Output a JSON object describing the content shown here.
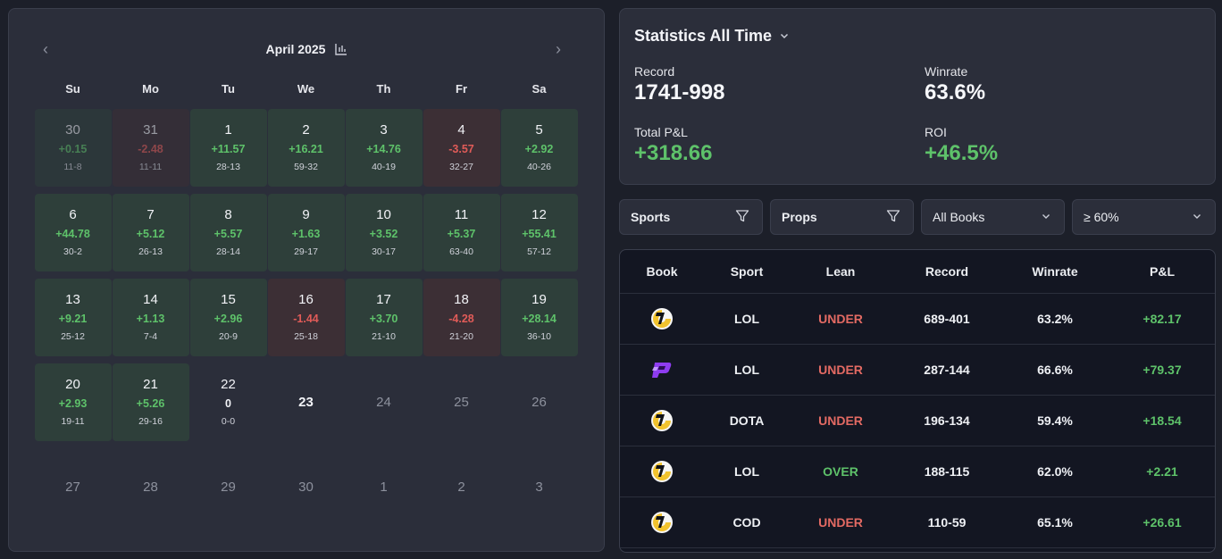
{
  "calendar": {
    "month_label": "April 2025",
    "prev_glyph": "‹",
    "next_glyph": "›",
    "weekdays": [
      "Su",
      "Mo",
      "Tu",
      "We",
      "Th",
      "Fr",
      "Sa"
    ],
    "days": [
      {
        "day": "30",
        "pnl": "+0.15",
        "record": "11-8",
        "status": "win",
        "other_month": true
      },
      {
        "day": "31",
        "pnl": "-2.48",
        "record": "11-11",
        "status": "loss",
        "other_month": true
      },
      {
        "day": "1",
        "pnl": "+11.57",
        "record": "28-13",
        "status": "win"
      },
      {
        "day": "2",
        "pnl": "+16.21",
        "record": "59-32",
        "status": "win"
      },
      {
        "day": "3",
        "pnl": "+14.76",
        "record": "40-19",
        "status": "win"
      },
      {
        "day": "4",
        "pnl": "-3.57",
        "record": "32-27",
        "status": "loss"
      },
      {
        "day": "5",
        "pnl": "+2.92",
        "record": "40-26",
        "status": "win"
      },
      {
        "day": "6",
        "pnl": "+44.78",
        "record": "30-2",
        "status": "win"
      },
      {
        "day": "7",
        "pnl": "+5.12",
        "record": "26-13",
        "status": "win"
      },
      {
        "day": "8",
        "pnl": "+5.57",
        "record": "28-14",
        "status": "win"
      },
      {
        "day": "9",
        "pnl": "+1.63",
        "record": "29-17",
        "status": "win"
      },
      {
        "day": "10",
        "pnl": "+3.52",
        "record": "30-17",
        "status": "win"
      },
      {
        "day": "11",
        "pnl": "+5.37",
        "record": "63-40",
        "status": "win"
      },
      {
        "day": "12",
        "pnl": "+55.41",
        "record": "57-12",
        "status": "win"
      },
      {
        "day": "13",
        "pnl": "+9.21",
        "record": "25-12",
        "status": "win"
      },
      {
        "day": "14",
        "pnl": "+1.13",
        "record": "7-4",
        "status": "win"
      },
      {
        "day": "15",
        "pnl": "+2.96",
        "record": "20-9",
        "status": "win"
      },
      {
        "day": "16",
        "pnl": "-1.44",
        "record": "25-18",
        "status": "loss"
      },
      {
        "day": "17",
        "pnl": "+3.70",
        "record": "21-10",
        "status": "win"
      },
      {
        "day": "18",
        "pnl": "-4.28",
        "record": "21-20",
        "status": "loss"
      },
      {
        "day": "19",
        "pnl": "+28.14",
        "record": "36-10",
        "status": "win"
      },
      {
        "day": "20",
        "pnl": "+2.93",
        "record": "19-11",
        "status": "win"
      },
      {
        "day": "21",
        "pnl": "+5.26",
        "record": "29-16",
        "status": "win"
      },
      {
        "day": "22",
        "pnl": "0",
        "record": "0-0",
        "status": "none"
      },
      {
        "day": "23",
        "status": "future"
      },
      {
        "day": "24",
        "status": "empty"
      },
      {
        "day": "25",
        "status": "empty"
      },
      {
        "day": "26",
        "status": "empty"
      },
      {
        "day": "27",
        "status": "empty"
      },
      {
        "day": "28",
        "status": "empty"
      },
      {
        "day": "29",
        "status": "empty"
      },
      {
        "day": "30",
        "status": "empty"
      },
      {
        "day": "1",
        "status": "empty"
      },
      {
        "day": "2",
        "status": "empty"
      },
      {
        "day": "3",
        "status": "empty"
      }
    ]
  },
  "stats": {
    "title": "Statistics All Time",
    "record_label": "Record",
    "record_value": "1741-998",
    "winrate_label": "Winrate",
    "winrate_value": "63.6%",
    "pnl_label": "Total P&L",
    "pnl_value": "+318.66",
    "roi_label": "ROI",
    "roi_value": "+46.5%"
  },
  "filters": {
    "sports": "Sports",
    "props": "Props",
    "books": "All Books",
    "threshold": "≥ 60%"
  },
  "table": {
    "headers": [
      "Book",
      "Sport",
      "Lean",
      "Record",
      "Winrate",
      "P&L"
    ],
    "rows": [
      {
        "book": "underdog-logo",
        "sport": "LOL",
        "lean": "UNDER",
        "record": "689-401",
        "winrate": "63.2%",
        "pnl": "+82.17"
      },
      {
        "book": "prizepicks-logo",
        "sport": "LOL",
        "lean": "UNDER",
        "record": "287-144",
        "winrate": "66.6%",
        "pnl": "+79.37"
      },
      {
        "book": "underdog-logo",
        "sport": "DOTA",
        "lean": "UNDER",
        "record": "196-134",
        "winrate": "59.4%",
        "pnl": "+18.54"
      },
      {
        "book": "underdog-logo",
        "sport": "LOL",
        "lean": "OVER",
        "record": "188-115",
        "winrate": "62.0%",
        "pnl": "+2.21"
      },
      {
        "book": "underdog-logo",
        "sport": "COD",
        "lean": "UNDER",
        "record": "110-59",
        "winrate": "65.1%",
        "pnl": "+26.61"
      }
    ]
  },
  "colors": {
    "positive": "#5ec26a",
    "negative": "#e05b58",
    "win_cell": "#2e3f3a",
    "loss_cell": "#3c2f35"
  }
}
